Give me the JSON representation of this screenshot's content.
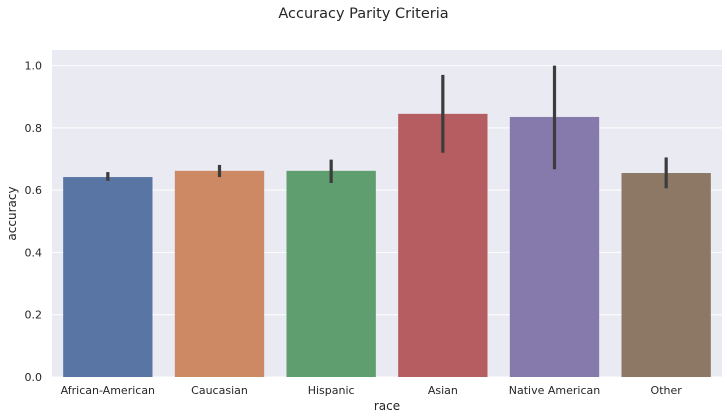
{
  "chart_data": {
    "type": "bar",
    "title": "Accuracy Parity Criteria",
    "xlabel": "race",
    "ylabel": "accuracy",
    "categories": [
      "African-American",
      "Caucasian",
      "Hispanic",
      "Asian",
      "Native American",
      "Other"
    ],
    "values": [
      0.642,
      0.662,
      0.662,
      0.845,
      0.835,
      0.655
    ],
    "error_low": [
      0.63,
      0.642,
      0.623,
      0.72,
      0.667,
      0.606
    ],
    "error_high": [
      0.658,
      0.681,
      0.698,
      0.97,
      1.0,
      0.705
    ],
    "ylim": [
      0,
      1.05
    ],
    "yticks": [
      0.0,
      0.2,
      0.4,
      0.6,
      0.8,
      1.0
    ],
    "ytick_labels": [
      "0.0",
      "0.2",
      "0.4",
      "0.6",
      "0.8",
      "1.0"
    ],
    "grid": true,
    "colors": [
      "#5975a4",
      "#cc8963",
      "#5f9e6e",
      "#b55d60",
      "#857aab",
      "#8d7866"
    ],
    "error_color": "#3c3c3c",
    "background": "#eaeaf2"
  }
}
